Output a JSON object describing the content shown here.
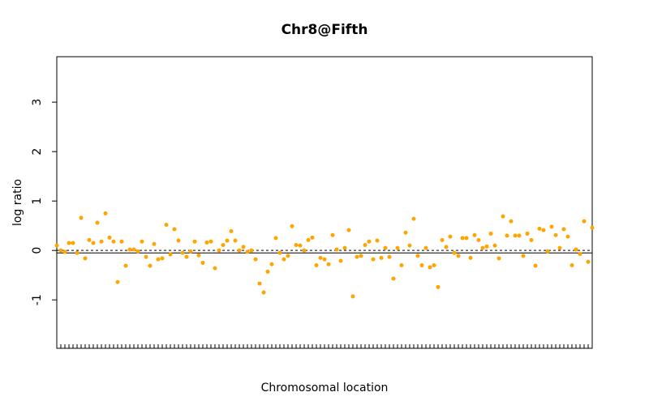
{
  "chart_data": {
    "type": "scatter",
    "title": "Chr8@Fifth",
    "x_label": "Chromosomal location",
    "y_label": "log ratio",
    "color": "#FFA500",
    "x": [
      0,
      1,
      2,
      3,
      4,
      5,
      6,
      7,
      8,
      9,
      10,
      11,
      12,
      13,
      14,
      15,
      16,
      17,
      18,
      19,
      20,
      21,
      22,
      23,
      24,
      25,
      26,
      27,
      28,
      29,
      30,
      31,
      32,
      33,
      34,
      35,
      36,
      37,
      38,
      39,
      40,
      41,
      42,
      43,
      44,
      45,
      46,
      47,
      48,
      49,
      50,
      51,
      52,
      53,
      54,
      55,
      56,
      57,
      58,
      59,
      60,
      61,
      62,
      63,
      64,
      65,
      66,
      67,
      68,
      69,
      70,
      71,
      72,
      73,
      74,
      75,
      76,
      77,
      78,
      79,
      80,
      81,
      82,
      83,
      84,
      85,
      86,
      87,
      88,
      89,
      90,
      91,
      92,
      93,
      94,
      95,
      96,
      97,
      98,
      99,
      100,
      101,
      102,
      103,
      104,
      105,
      106,
      107,
      108,
      109,
      110,
      111,
      112,
      113,
      114,
      115,
      116,
      117,
      118,
      119,
      120,
      121,
      122,
      123,
      124,
      125,
      126,
      127,
      128,
      129,
      130,
      131,
      132
    ],
    "values": [
      0.1,
      0,
      -0.03,
      0.15,
      0.15,
      -0.05,
      0.66,
      -0.16,
      0.21,
      0.15,
      0.56,
      0.18,
      0.75,
      0.26,
      0.18,
      -0.64,
      0.18,
      -0.31,
      0.02,
      0.02,
      -0.02,
      0.18,
      -0.13,
      -0.31,
      0.13,
      -0.18,
      -0.16,
      0.52,
      -0.08,
      0.43,
      0.2,
      -0.05,
      -0.13,
      -0.02,
      0.18,
      -0.1,
      -0.25,
      0.16,
      0.18,
      -0.36,
      0,
      0.11,
      0.2,
      0.39,
      0.2,
      0,
      0.07,
      -0.03,
      0,
      -0.18,
      -0.67,
      -0.85,
      -0.43,
      -0.28,
      0.25,
      -0.05,
      -0.18,
      -0.11,
      0.49,
      0.11,
      0.1,
      0,
      0.21,
      0.26,
      -0.3,
      -0.15,
      -0.18,
      -0.28,
      0.31,
      0.02,
      -0.21,
      0.05,
      0.41,
      -0.93,
      -0.13,
      -0.11,
      0.11,
      0.18,
      -0.18,
      0.2,
      -0.15,
      0.05,
      -0.13,
      -0.57,
      0.05,
      -0.3,
      0.36,
      0.1,
      0.64,
      -0.11,
      -0.3,
      0.05,
      -0.34,
      -0.3,
      -0.74,
      0.21,
      0.07,
      0.28,
      -0.05,
      -0.11,
      0.25,
      0.25,
      -0.15,
      0.31,
      0.21,
      0.05,
      0.08,
      0.34,
      0.1,
      -0.16,
      0.69,
      0.3,
      0.59,
      0.3,
      0.3,
      -0.11,
      0.34,
      0.21,
      -0.31,
      0.44,
      0.41,
      -0.02,
      0.48,
      0.31,
      0.05,
      0.43,
      0.28,
      -0.3,
      0.02,
      -0.07,
      0.59,
      -0.23,
      0.46
    ],
    "xlim": [
      0,
      132
    ],
    "xticks": [
      1,
      2,
      3,
      4,
      5,
      6,
      7,
      8,
      9,
      10,
      11,
      12,
      13,
      14,
      15,
      16,
      17,
      18,
      19,
      20,
      21,
      22,
      23,
      24,
      25,
      26,
      27,
      28,
      29,
      30,
      31,
      32,
      33,
      34,
      35,
      36,
      37,
      38,
      39,
      40,
      41,
      42,
      43,
      44,
      45,
      46,
      47,
      48,
      49,
      50,
      51,
      52,
      53,
      54,
      55,
      56,
      57,
      58,
      59,
      60,
      61,
      62,
      63,
      64,
      65,
      66,
      67,
      68,
      69,
      70,
      71,
      72,
      73,
      74,
      75,
      76,
      77,
      78,
      79,
      80,
      81,
      82,
      83,
      84,
      85,
      86,
      87,
      88,
      89,
      90,
      91,
      92,
      93,
      94,
      95,
      96,
      97,
      98,
      99,
      100,
      101,
      102,
      103,
      104,
      105,
      106,
      107,
      108,
      109,
      110,
      111,
      112,
      113,
      114,
      115,
      116,
      117,
      118,
      119,
      120,
      121,
      122,
      123,
      124,
      125,
      126,
      127,
      128,
      129,
      130,
      131
    ],
    "ylim": [
      -1.98,
      3.92
    ],
    "yticks": [
      -1,
      0,
      1,
      2,
      3
    ],
    "hlines": [
      {
        "y": 0,
        "style": "dashed"
      },
      {
        "y": -0.05,
        "style": "solid"
      }
    ]
  }
}
